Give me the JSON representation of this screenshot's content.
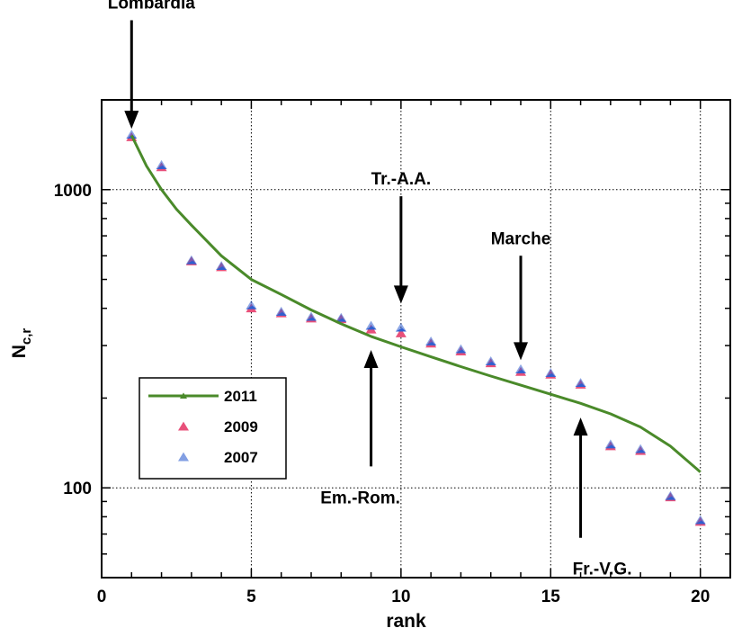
{
  "chart_data": {
    "type": "scatter",
    "title": "",
    "xlabel": "rank",
    "ylabel_main": "N",
    "ylabel_sub": "c,r",
    "xlim": [
      0,
      21
    ],
    "ylim": [
      50,
      2000
    ],
    "yscale": "log",
    "x_ticks": [
      0,
      5,
      10,
      15,
      20
    ],
    "y_tick_labels": [
      {
        "value": 100,
        "label": "100"
      },
      {
        "value": 1000,
        "label": "1000"
      }
    ],
    "grid": "dotted",
    "legend_position": "lower-left",
    "series": [
      {
        "name": "2011",
        "kind": "line",
        "color": "#4a8a2a",
        "x": [
          1,
          1.5,
          2,
          2.5,
          3,
          4,
          5,
          6,
          7,
          8,
          9,
          10,
          11,
          12,
          13,
          14,
          15,
          16,
          17,
          18,
          19,
          20
        ],
        "values": [
          1520,
          1200,
          1000,
          860,
          760,
          600,
          500,
          445,
          395,
          355,
          322,
          297,
          275,
          255,
          237,
          221,
          206,
          192,
          177,
          160,
          138,
          113
        ]
      },
      {
        "name": "2009",
        "kind": "marker",
        "color": "#e8507a",
        "x": [
          1,
          2,
          3,
          4,
          5,
          6,
          7,
          8,
          9,
          10,
          11,
          12,
          13,
          14,
          15,
          16,
          17,
          18,
          19,
          20
        ],
        "values": [
          1500,
          1190,
          575,
          550,
          400,
          385,
          370,
          368,
          340,
          330,
          305,
          287,
          262,
          245,
          240,
          222,
          138,
          133,
          93,
          77
        ]
      },
      {
        "name": "2007",
        "kind": "marker",
        "color": "#2f5fd0",
        "x": [
          1,
          2,
          3,
          4,
          5,
          6,
          7,
          8,
          9,
          10,
          11,
          12,
          13,
          14,
          15,
          16,
          17,
          18,
          19,
          20
        ],
        "values": [
          1530,
          1210,
          580,
          555,
          410,
          390,
          375,
          372,
          350,
          345,
          310,
          292,
          266,
          250,
          243,
          225,
          140,
          135,
          94,
          78
        ]
      }
    ],
    "annotations": [
      {
        "text": "Lombardia",
        "x": 1,
        "y_tip": 1600,
        "y_tail": 3700,
        "direction": "down"
      },
      {
        "text": "Tr.-A.A.",
        "x": 10,
        "y_tip": 415,
        "y_tail": 950,
        "direction": "down"
      },
      {
        "text": "Marche",
        "x": 14,
        "y_tip": 268,
        "y_tail": 600,
        "direction": "down"
      },
      {
        "text": "Em.-Rom.",
        "x": 9,
        "y_tip": 290,
        "y_tail": 118,
        "direction": "up"
      },
      {
        "text": "Fr.-V.G.",
        "x": 16,
        "y_tip": 172,
        "y_tail": 68,
        "direction": "up"
      }
    ]
  }
}
